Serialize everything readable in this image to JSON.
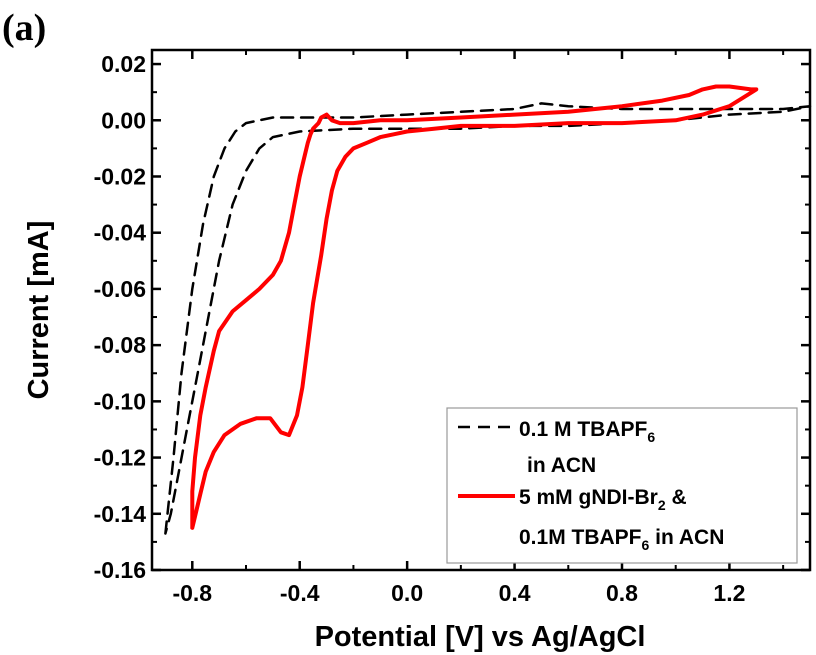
{
  "panel_label": "(a)",
  "chart_data": {
    "type": "line",
    "xlabel": "Potential [V] vs Ag/AgCl",
    "ylabel": "Current [mA]",
    "xlim": [
      -0.95,
      1.5
    ],
    "ylim": [
      -0.16,
      0.025
    ],
    "xticks": [
      "-0.8",
      "-0.4",
      "0.0",
      "0.4",
      "0.8",
      "1.2"
    ],
    "yticks": [
      "0.02",
      "0.00",
      "-0.02",
      "-0.04",
      "-0.06",
      "-0.08",
      "-0.10",
      "-0.12",
      "-0.14",
      "-0.16"
    ],
    "grid": false,
    "legend_position": "bottom-right",
    "series": [
      {
        "name": "0.1 M TBAPF6 in ACN",
        "legend_lines": [
          "0.1 M TBAPF",
          "6",
          "in ACN"
        ],
        "color": "#000000",
        "style": "dashed",
        "x": [
          -0.9,
          -0.87,
          -0.84,
          -0.8,
          -0.76,
          -0.72,
          -0.68,
          -0.64,
          -0.6,
          -0.55,
          -0.5,
          -0.4,
          -0.3,
          -0.2,
          0.0,
          0.2,
          0.4,
          0.5,
          0.6,
          0.8,
          1.0,
          1.2,
          1.4,
          1.5,
          1.4,
          1.2,
          1.0,
          0.8,
          0.6,
          0.4,
          0.2,
          0.0,
          -0.2,
          -0.4,
          -0.5,
          -0.55,
          -0.6,
          -0.65,
          -0.7,
          -0.74,
          -0.78,
          -0.82,
          -0.86,
          -0.88,
          -0.9
        ],
        "y": [
          -0.147,
          -0.12,
          -0.09,
          -0.06,
          -0.037,
          -0.02,
          -0.01,
          -0.004,
          -0.001,
          0.0,
          0.001,
          0.001,
          0.001,
          0.001,
          0.002,
          0.003,
          0.004,
          0.006,
          0.005,
          0.004,
          0.004,
          0.004,
          0.004,
          0.005,
          0.003,
          0.002,
          0.0,
          -0.001,
          -0.002,
          -0.002,
          -0.003,
          -0.003,
          -0.003,
          -0.004,
          -0.006,
          -0.01,
          -0.018,
          -0.03,
          -0.05,
          -0.07,
          -0.09,
          -0.11,
          -0.13,
          -0.14,
          -0.147
        ]
      },
      {
        "name": "5 mM gNDI-Br2 & 0.1M TBAPF6 in ACN",
        "legend_lines": [
          "5 mM gNDI-Br",
          "2",
          " &",
          "0.1M TBAPF",
          "6",
          " in ACN"
        ],
        "color": "#ff0000",
        "style": "solid",
        "x": [
          -0.8,
          -0.8,
          -0.79,
          -0.77,
          -0.75,
          -0.72,
          -0.7,
          -0.65,
          -0.6,
          -0.55,
          -0.5,
          -0.47,
          -0.44,
          -0.42,
          -0.4,
          -0.38,
          -0.37,
          -0.36,
          -0.35,
          -0.34,
          -0.33,
          -0.32,
          -0.3,
          -0.28,
          -0.25,
          -0.2,
          -0.1,
          0.0,
          0.2,
          0.4,
          0.6,
          0.8,
          0.95,
          1.05,
          1.1,
          1.15,
          1.2,
          1.28,
          1.3,
          1.25,
          1.2,
          1.1,
          1.0,
          0.8,
          0.6,
          0.4,
          0.2,
          0.1,
          0.0,
          -0.05,
          -0.1,
          -0.15,
          -0.2,
          -0.23,
          -0.26,
          -0.28,
          -0.3,
          -0.32,
          -0.35,
          -0.37,
          -0.39,
          -0.41,
          -0.44,
          -0.47,
          -0.51,
          -0.56,
          -0.62,
          -0.68,
          -0.72,
          -0.75,
          -0.77,
          -0.79,
          -0.8
        ],
        "y": [
          -0.145,
          -0.132,
          -0.12,
          -0.105,
          -0.095,
          -0.082,
          -0.075,
          -0.068,
          -0.064,
          -0.06,
          -0.055,
          -0.05,
          -0.04,
          -0.03,
          -0.02,
          -0.012,
          -0.008,
          -0.005,
          -0.003,
          -0.002,
          -0.001,
          0.001,
          0.002,
          0.0,
          -0.001,
          -0.001,
          0.0,
          0.0,
          0.001,
          0.002,
          0.003,
          0.005,
          0.007,
          0.009,
          0.011,
          0.012,
          0.012,
          0.011,
          0.011,
          0.008,
          0.005,
          0.002,
          0.0,
          -0.001,
          -0.001,
          -0.002,
          -0.002,
          -0.003,
          -0.004,
          -0.005,
          -0.006,
          -0.008,
          -0.01,
          -0.013,
          -0.018,
          -0.025,
          -0.035,
          -0.048,
          -0.065,
          -0.08,
          -0.095,
          -0.105,
          -0.112,
          -0.111,
          -0.106,
          -0.106,
          -0.108,
          -0.112,
          -0.118,
          -0.125,
          -0.133,
          -0.141,
          -0.145
        ]
      }
    ]
  }
}
